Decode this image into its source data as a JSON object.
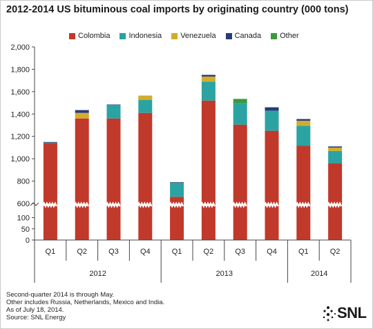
{
  "title": "2012-2014 US bituminous coal imports by originating country (000 tons)",
  "notes": [
    "Second-quarter 2014 is through May.",
    "Other includes Russia, Netherlands, Mexico and India.",
    "As of July 18, 2014.",
    "Source: SNL Energy"
  ],
  "logo": {
    "text": "SNL"
  },
  "colors": {
    "Colombia": "#c0392b",
    "Indonesia": "#2ba3a3",
    "Venezuela": "#d4ac2b",
    "Canada": "#2b3a7a",
    "Other": "#3a9a3a",
    "axis": "#444444",
    "grid": "#aaaaaa"
  },
  "chart_data": {
    "type": "bar",
    "stacked": true,
    "categories": [
      "Q1",
      "Q2",
      "Q3",
      "Q4",
      "Q1",
      "Q2",
      "Q3",
      "Q4",
      "Q1",
      "Q2"
    ],
    "category_groups": [
      {
        "label": "2012",
        "span": 4
      },
      {
        "label": "2013",
        "span": 4
      },
      {
        "label": "2014",
        "span": 2
      }
    ],
    "series": [
      {
        "name": "Colombia",
        "values": [
          1140,
          1360,
          1360,
          1410,
          660,
          1520,
          1305,
          1250,
          1115,
          960
        ]
      },
      {
        "name": "Indonesia",
        "values": [
          5,
          0,
          120,
          115,
          125,
          170,
          195,
          180,
          180,
          110
        ]
      },
      {
        "name": "Venezuela",
        "values": [
          0,
          50,
          0,
          40,
          0,
          45,
          0,
          0,
          45,
          30
        ]
      },
      {
        "name": "Canada",
        "values": [
          5,
          25,
          5,
          0,
          5,
          15,
          0,
          30,
          15,
          10
        ]
      },
      {
        "name": "Other",
        "values": [
          0,
          0,
          0,
          0,
          0,
          0,
          35,
          0,
          0,
          0
        ]
      }
    ],
    "ylim": [
      0,
      2000
    ],
    "y_axis_break": true,
    "yticks": [
      0,
      50,
      100,
      600,
      800,
      1000,
      1200,
      1400,
      1600,
      1800,
      2000
    ],
    "ytick_labels": [
      "0",
      "50",
      "100",
      "600",
      "800",
      "1,000",
      "1,200",
      "1,400",
      "1,600",
      "1,800",
      "2,000"
    ],
    "xlabel": "",
    "ylabel": "",
    "legend_position": "top",
    "grid": false
  }
}
